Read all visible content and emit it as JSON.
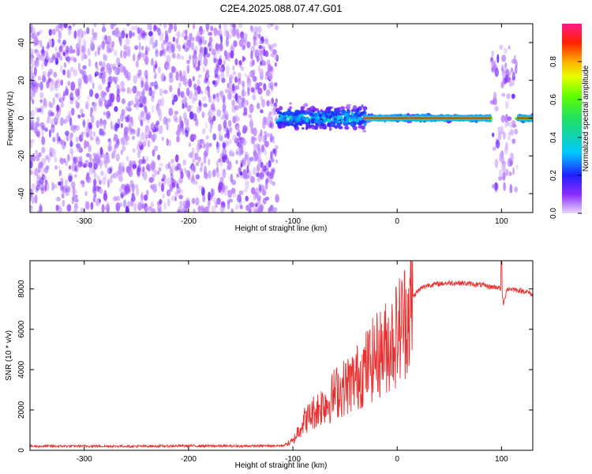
{
  "figure_title": "C2E4.2025.088.07.47.G01",
  "colors": {
    "snr_line": "#e83030",
    "spectrogram_low": "#7b2cff",
    "axis": "#000000"
  },
  "chart_data": [
    {
      "type": "heatmap",
      "title": "C2E4.2025.088.07.47.G01",
      "xlabel": "Height of straight line (km)",
      "ylabel": "Frequency (Hz)",
      "xlim": [
        -352,
        130
      ],
      "ylim": [
        -50,
        50
      ],
      "x_ticks": [
        -300,
        -200,
        -100,
        0,
        100
      ],
      "y_ticks": [
        -40,
        -20,
        0,
        20,
        40
      ],
      "x_tick_labels": [
        "-300",
        "-200",
        "-100",
        "0",
        "100"
      ],
      "y_tick_labels": [
        "-40",
        "-20",
        "0",
        "20",
        "40"
      ],
      "colorbar": {
        "label": "Normalized spectral amplitude",
        "range": [
          0,
          1
        ],
        "ticks": [
          0.0,
          0.2,
          0.4,
          0.6,
          0.8
        ],
        "tick_labels": [
          "0.0",
          "0.2",
          "0.4",
          "0.6",
          "0.8"
        ],
        "colormap": "rainbow (violet to magenta)"
      },
      "regions": [
        {
          "x_range": [
            -352,
            -115
          ],
          "description": "broadband noise",
          "freq_spread_hz": 50,
          "amplitude": 0.05
        },
        {
          "x_range": [
            -115,
            -30
          ],
          "description": "signal emerging near 0 Hz",
          "freq_spread_hz": 8,
          "amplitude": 0.4
        },
        {
          "x_range": [
            -30,
            90
          ],
          "description": "strong narrow tone at 0 Hz",
          "freq_spread_hz": 2,
          "amplitude": 0.95
        },
        {
          "x_range": [
            90,
            115
          ],
          "description": "vertical spread bands",
          "freq_spread_hz": 38,
          "amplitude": 0.1
        },
        {
          "x_range": [
            115,
            130
          ],
          "description": "tone continues at 0 Hz",
          "freq_spread_hz": 2,
          "amplitude": 0.9
        }
      ]
    },
    {
      "type": "line",
      "xlabel": "Height of straight line (km)",
      "ylabel": "SNR (10 * v/v)",
      "xlim": [
        -352,
        130
      ],
      "ylim": [
        0,
        9400
      ],
      "x_ticks": [
        -300,
        -200,
        -100,
        0,
        100
      ],
      "y_ticks": [
        0,
        2000,
        4000,
        6000,
        8000
      ],
      "x_tick_labels": [
        "-300",
        "-200",
        "-100",
        "0",
        "100"
      ],
      "y_tick_labels": [
        "0",
        "2000",
        "4000",
        "6000",
        "8000"
      ],
      "series": [
        {
          "color": "#e83030",
          "x": [
            -352,
            -300,
            -250,
            -200,
            -150,
            -110,
            -100,
            -95,
            -90,
            -85,
            -80,
            -75,
            -70,
            -65,
            -60,
            -55,
            -50,
            -45,
            -40,
            -35,
            -30,
            -25,
            -20,
            -15,
            -10,
            -5,
            0,
            5,
            10,
            15,
            20,
            25,
            30,
            40,
            50,
            60,
            70,
            80,
            90,
            95,
            100,
            102,
            105,
            110,
            115,
            120,
            125,
            130
          ],
          "values": [
            200,
            210,
            200,
            220,
            210,
            230,
            450,
            1000,
            1500,
            1700,
            2000,
            2200,
            2500,
            2500,
            3000,
            3100,
            3300,
            3500,
            3700,
            4000,
            4300,
            4600,
            4900,
            5100,
            5400,
            5700,
            6100,
            6600,
            7100,
            7600,
            7900,
            8100,
            8200,
            8250,
            8300,
            8300,
            8250,
            8200,
            8100,
            8100,
            8000,
            7200,
            8000,
            8000,
            7950,
            7900,
            7850,
            7700
          ]
        }
      ]
    }
  ]
}
